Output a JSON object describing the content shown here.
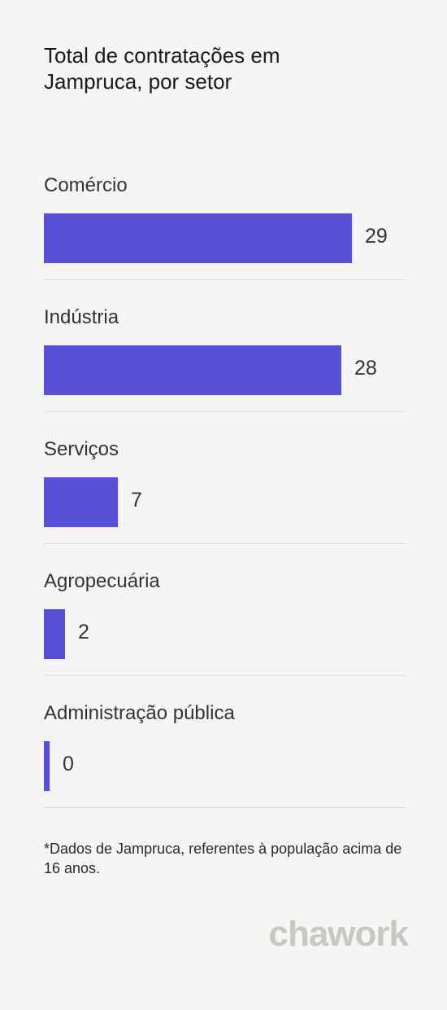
{
  "chart_data": {
    "type": "bar",
    "orientation": "horizontal",
    "title": "Total de contratações em Jampruca, por setor",
    "categories": [
      "Comércio",
      "Indústria",
      "Serviços",
      "Agropecuária",
      "Administração pública"
    ],
    "values": [
      29,
      28,
      7,
      2,
      0
    ],
    "color": "#5651d6",
    "grid": false,
    "legend": "none"
  },
  "footnote": "*Dados de Jampruca, referentes à população acima de 16 anos.",
  "brand": "chawork"
}
